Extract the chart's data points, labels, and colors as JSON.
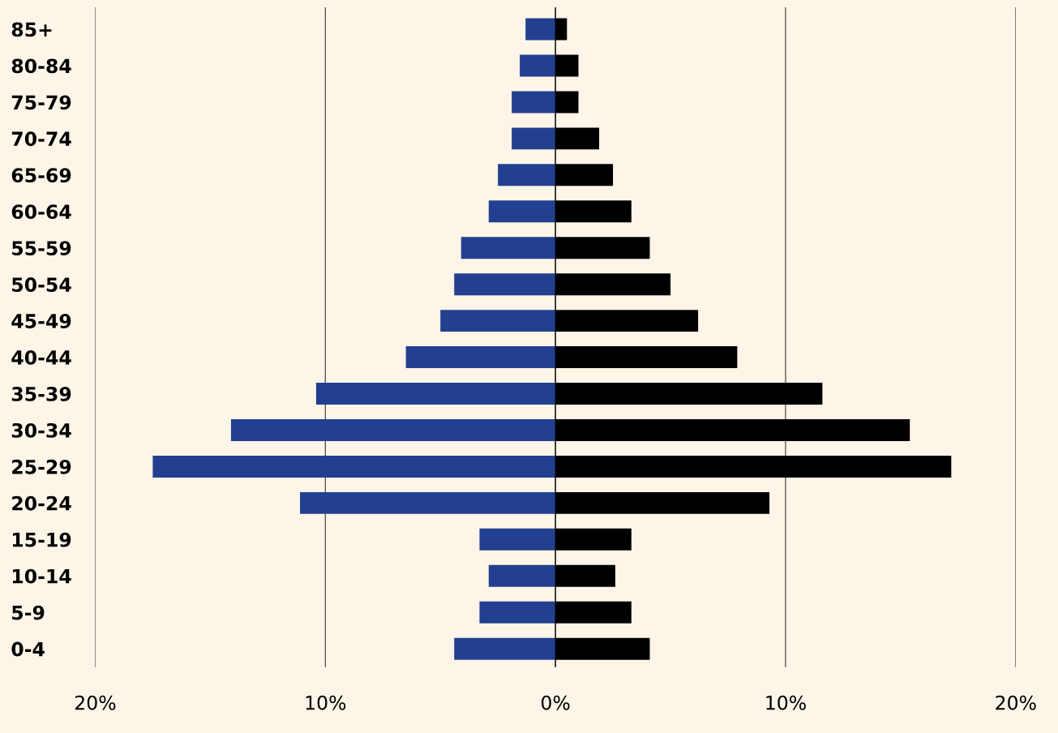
{
  "chart_data": {
    "type": "bar",
    "orientation": "horizontal",
    "stacked": true,
    "grid": "x",
    "categories": [
      "85+",
      "80-84",
      "75-79",
      "70-74",
      "65-69",
      "60-64",
      "55-59",
      "50-54",
      "45-49",
      "40-44",
      "35-39",
      "30-34",
      "25-29",
      "20-24",
      "15-19",
      "10-14",
      "5-9",
      "0-4"
    ],
    "series": [
      {
        "color": "#22408f",
        "values": [
          -1.3,
          -1.55,
          -1.9,
          -1.9,
          -2.5,
          -2.9,
          -4.1,
          -4.4,
          -5.0,
          -6.5,
          -10.4,
          -14.1,
          -17.5,
          -11.1,
          -3.3,
          -2.9,
          -3.3,
          -4.4
        ]
      },
      {
        "color": "#000000",
        "values": [
          0.5,
          1.0,
          1.0,
          1.9,
          2.5,
          3.3,
          4.1,
          5.0,
          6.2,
          7.9,
          11.6,
          15.4,
          17.2,
          9.3,
          3.3,
          2.6,
          3.3,
          4.1
        ]
      }
    ],
    "xlim": [
      -20,
      20
    ],
    "xticks": [
      {
        "value": -20,
        "label": "20%"
      },
      {
        "value": -10,
        "label": "10%"
      },
      {
        "value": 0,
        "label": "0%"
      },
      {
        "value": 10,
        "label": "10%"
      },
      {
        "value": 20,
        "label": "20%"
      }
    ]
  }
}
